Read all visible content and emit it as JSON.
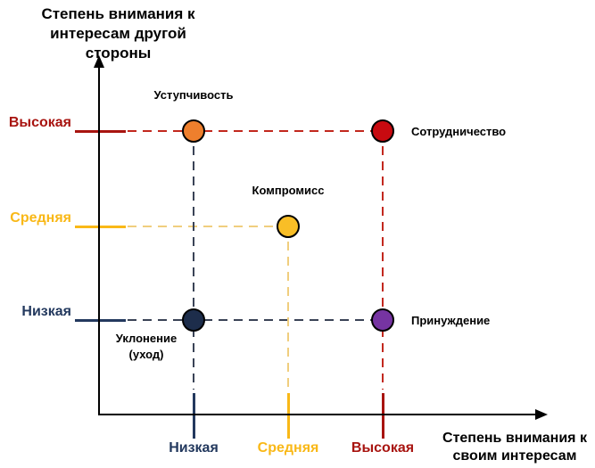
{
  "figure": {
    "background": "#ffffff",
    "axis_color": "#000000",
    "text_color": "#000000"
  },
  "chart_data": {
    "type": "scatter",
    "title": "",
    "description_model": "Стили поведения в конфликте",
    "legend_position": "none",
    "grid": "dashed guide lines from each point to both axes",
    "y_axis": {
      "title": "Степень внимания к интересам другой стороны",
      "title_lines": [
        "Степень внимания к",
        "интересам другой",
        "стороны"
      ],
      "ticks": [
        {
          "label": "Высокая",
          "color": "#A81410",
          "dash_color": "#C2281E"
        },
        {
          "label": "Средняя",
          "color": "#F9B817",
          "dash_color": "#F0CE7E"
        },
        {
          "label": "Низкая",
          "color": "#23395E",
          "dash_color": "#3A4356"
        }
      ]
    },
    "x_axis": {
      "title": "Степень внимания к своим интересам",
      "title_lines": [
        "Степень внимания к",
        "своим интересам"
      ],
      "ticks": [
        {
          "label": "Низкая",
          "color": "#23395E",
          "dash_color": "#3A4356"
        },
        {
          "label": "Средняя",
          "color": "#F9B817",
          "dash_color": "#F0CE7E"
        },
        {
          "label": "Высокая",
          "color": "#A81410",
          "dash_color": "#C2281E"
        }
      ]
    },
    "points": [
      {
        "label": "Уступчивость",
        "label_lines": [
          "Уступчивость"
        ],
        "x": "Низкая",
        "y": "Высокая",
        "color": "#EE7F2D",
        "label_position": "above"
      },
      {
        "label": "Сотрудничество",
        "label_lines": [
          "Сотрудничество"
        ],
        "x": "Высокая",
        "y": "Высокая",
        "color": "#C80A10",
        "label_position": "right"
      },
      {
        "label": "Компромисс",
        "label_lines": [
          "Компромисс"
        ],
        "x": "Средняя",
        "y": "Средняя",
        "color": "#F9BE26",
        "label_position": "above"
      },
      {
        "label": "Уклонение (уход)",
        "label_lines": [
          "Уклонение",
          "(уход)"
        ],
        "x": "Низкая",
        "y": "Низкая",
        "color": "#1D2D4B",
        "label_position": "below-left"
      },
      {
        "label": "Принуждение",
        "label_lines": [
          "Принуждение"
        ],
        "x": "Высокая",
        "y": "Низкая",
        "color": "#7634A2",
        "label_position": "right"
      }
    ]
  }
}
